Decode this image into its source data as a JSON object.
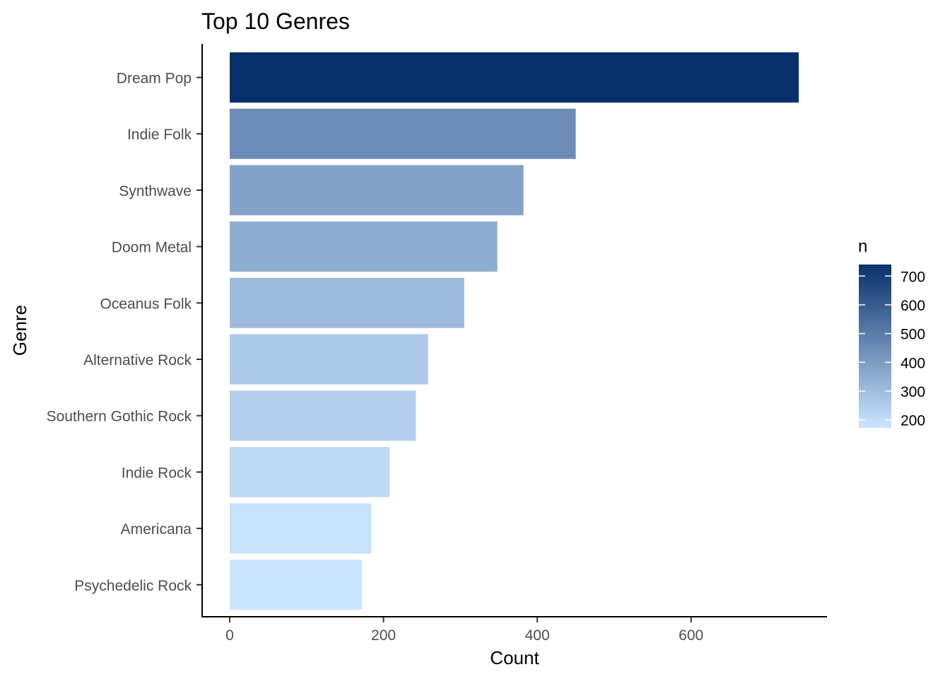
{
  "chart_data": {
    "type": "bar",
    "orientation": "horizontal",
    "title": "Top 10 Genres",
    "xlabel": "Count",
    "ylabel": "Genre",
    "categories": [
      "Dream Pop",
      "Indie Folk",
      "Synthwave",
      "Doom Metal",
      "Oceanus Folk",
      "Alternative Rock",
      "Southern Gothic Rock",
      "Indie Rock",
      "Americana",
      "Psychedelic Rock"
    ],
    "values": [
      740,
      450,
      382,
      348,
      305,
      258,
      242,
      208,
      184,
      172
    ],
    "xlim": [
      0,
      740
    ],
    "xticks": [
      0,
      200,
      400,
      600
    ],
    "grid": false,
    "legend": {
      "title": "n",
      "placement": "right",
      "ticks": [
        200,
        300,
        400,
        500,
        600,
        700
      ],
      "range": [
        172,
        740
      ],
      "color_low": "#cce5ff",
      "color_high": "#08306b"
    }
  }
}
